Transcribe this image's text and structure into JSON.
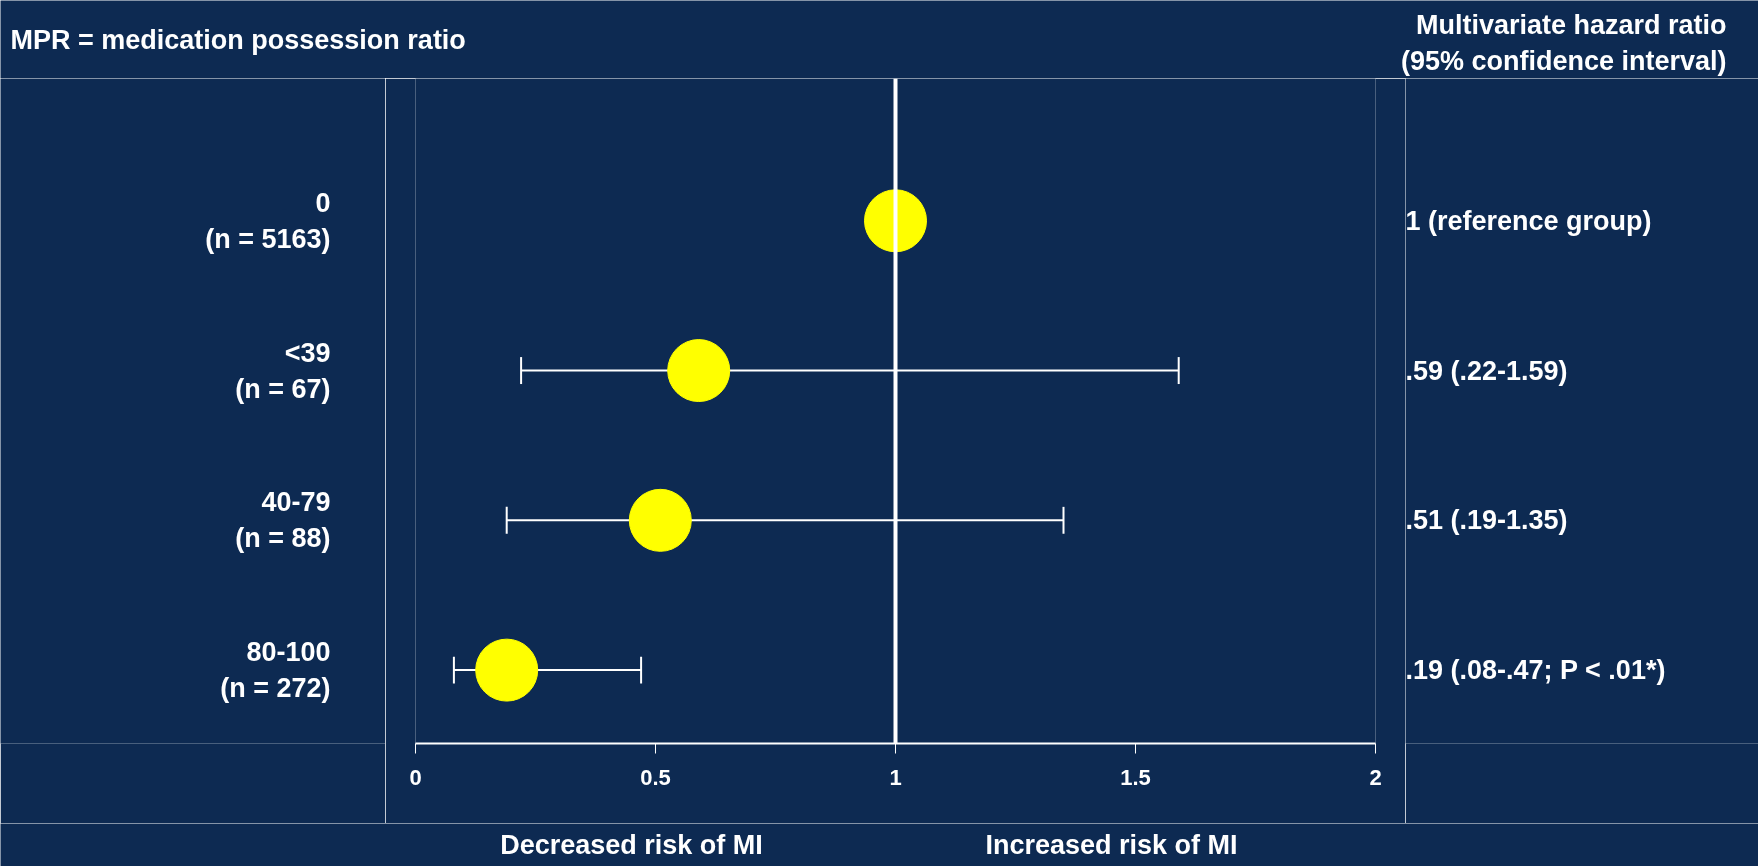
{
  "chart_data": {
    "type": "scatter",
    "orientation": "horizontal",
    "categories": [
      "0\n(n = 5163)",
      "<39\n(n = 67)",
      "40-79\n(n = 88)",
      "80-100\n(n = 272)"
    ],
    "values": [
      1,
      0.59,
      0.51,
      0.19
    ],
    "errors": [
      null,
      [
        0.22,
        1.59
      ],
      [
        0.19,
        1.35
      ],
      [
        0.08,
        0.47
      ]
    ],
    "color": "#ffff00",
    "marker": "circle",
    "grid": false,
    "legend": false,
    "xlim": [
      0,
      2
    ],
    "xticks": [
      0,
      0.5,
      1,
      1.5,
      2
    ],
    "ref_lines": [
      {
        "axis": "x",
        "value": 1,
        "color": "#ffffff"
      }
    ],
    "annotations": [
      "MPR = medication possession ratio",
      "Multivariate hazard ratio\n(95% confidence interval)",
      "1 (reference group)",
      ".59 (.22-1.59)",
      ".51 (.19-1.35)",
      ".19 (.08-.47; P < .01*)",
      "Decreased risk of MI",
      "Increased risk of MI"
    ]
  }
}
